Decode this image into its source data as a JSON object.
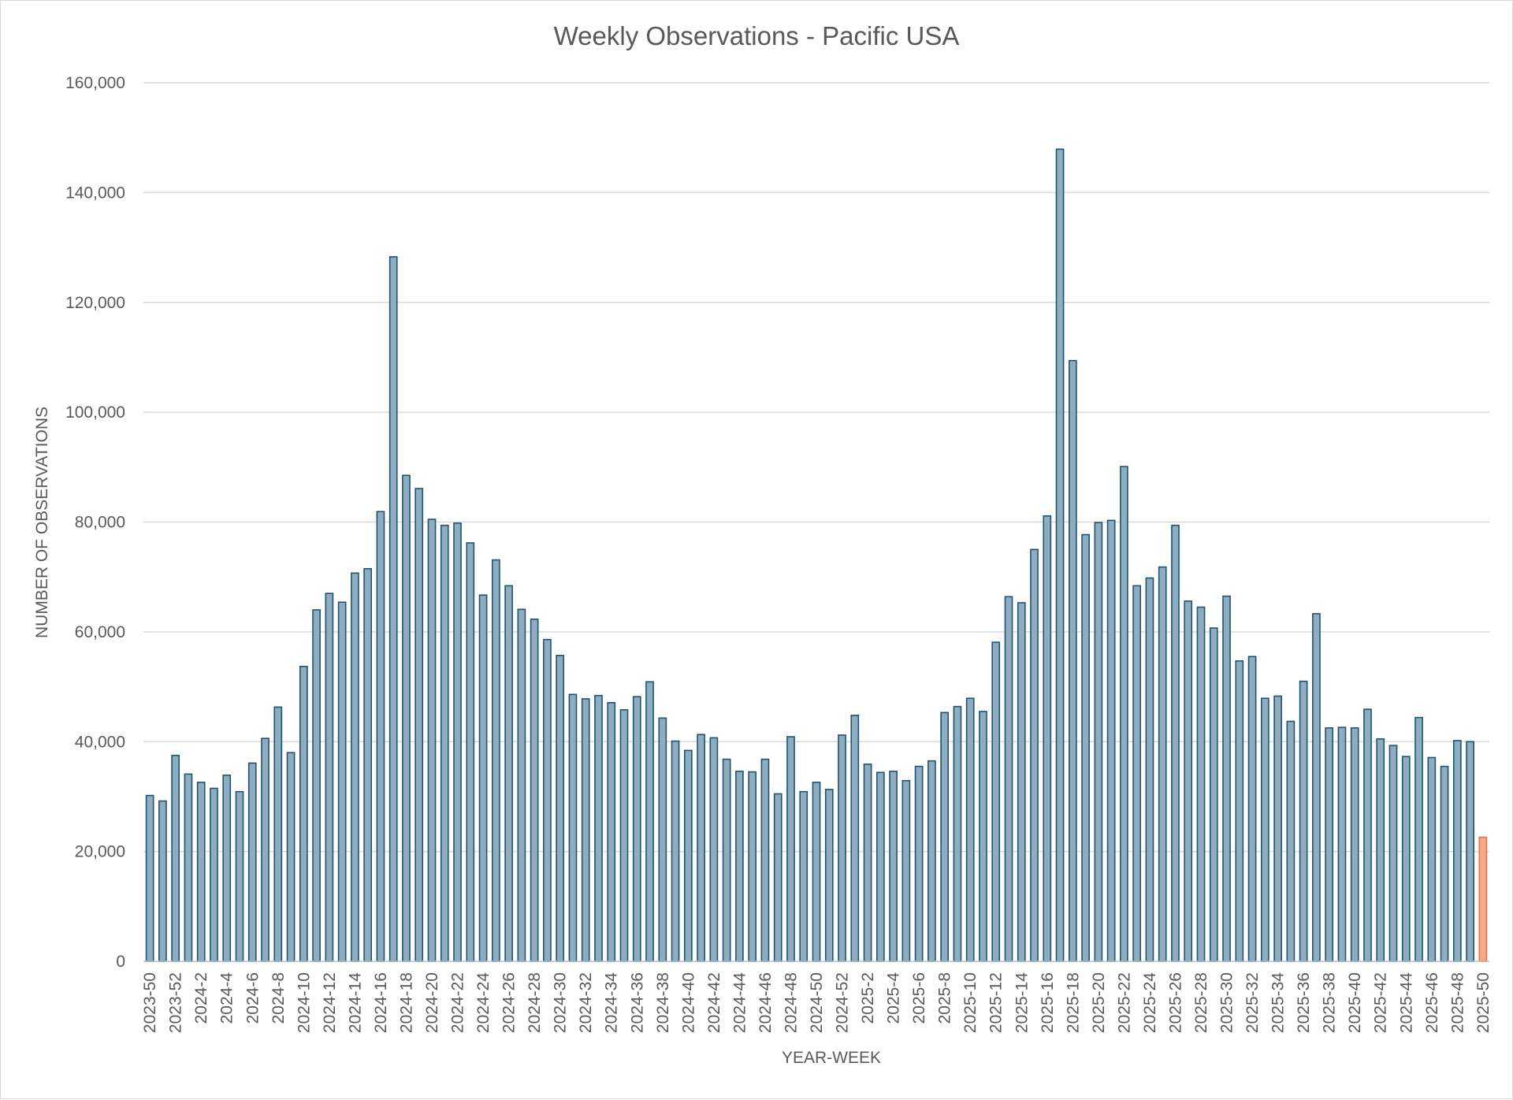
{
  "chart_data": {
    "type": "bar",
    "title": "Weekly Observations - Pacific USA",
    "xlabel": "YEAR-WEEK",
    "ylabel": "NUMBER OF OBSERVATIONS",
    "ylim": [
      0,
      160000
    ],
    "yticks": [
      0,
      20000,
      40000,
      60000,
      80000,
      100000,
      120000,
      140000,
      160000
    ],
    "ytick_labels": [
      "0",
      "20,000",
      "40,000",
      "60,000",
      "80,000",
      "100,000",
      "120,000",
      "140,000",
      "160,000"
    ],
    "grid": "horizontal",
    "legend": "none",
    "tick_label_every": 2,
    "colors": {
      "bar": "#8eadc0",
      "bar_edge": "#1f5473",
      "highlight": "#f6a98b",
      "highlight_edge": "#e8733e"
    },
    "highlight_categories": [
      "2025-50"
    ],
    "categories": [
      "2023-50",
      "2023-51",
      "2023-52",
      "2024-1",
      "2024-2",
      "2024-3",
      "2024-4",
      "2024-5",
      "2024-6",
      "2024-7",
      "2024-8",
      "2024-9",
      "2024-10",
      "2024-11",
      "2024-12",
      "2024-13",
      "2024-14",
      "2024-15",
      "2024-16",
      "2024-17",
      "2024-18",
      "2024-19",
      "2024-20",
      "2024-21",
      "2024-22",
      "2024-23",
      "2024-24",
      "2024-25",
      "2024-26",
      "2024-27",
      "2024-28",
      "2024-29",
      "2024-30",
      "2024-31",
      "2024-32",
      "2024-33",
      "2024-34",
      "2024-35",
      "2024-36",
      "2024-37",
      "2024-38",
      "2024-39",
      "2024-40",
      "2024-41",
      "2024-42",
      "2024-43",
      "2024-44",
      "2024-45",
      "2024-46",
      "2024-47",
      "2024-48",
      "2024-49",
      "2024-50",
      "2024-51",
      "2024-52",
      "2025-1",
      "2025-2",
      "2025-3",
      "2025-4",
      "2025-5",
      "2025-6",
      "2025-7",
      "2025-8",
      "2025-9",
      "2025-10",
      "2025-11",
      "2025-12",
      "2025-13",
      "2025-14",
      "2025-15",
      "2025-16",
      "2025-17",
      "2025-18",
      "2025-19",
      "2025-20",
      "2025-21",
      "2025-22",
      "2025-23",
      "2025-24",
      "2025-25",
      "2025-26",
      "2025-27",
      "2025-28",
      "2025-29",
      "2025-30",
      "2025-31",
      "2025-32",
      "2025-33",
      "2025-34",
      "2025-35",
      "2025-36",
      "2025-37",
      "2025-38",
      "2025-39",
      "2025-40",
      "2025-41",
      "2025-42",
      "2025-43",
      "2025-44",
      "2025-45",
      "2025-46",
      "2025-47",
      "2025-48",
      "2025-49",
      "2025-50"
    ],
    "values": [
      30200,
      29200,
      37500,
      34100,
      32600,
      31500,
      33900,
      30900,
      36100,
      40600,
      46300,
      38000,
      53700,
      64000,
      67000,
      65400,
      70700,
      71500,
      81900,
      128300,
      88500,
      86100,
      80500,
      79400,
      79800,
      76200,
      66700,
      73100,
      68400,
      64100,
      62300,
      58600,
      55700,
      48600,
      47800,
      48400,
      47100,
      45800,
      48200,
      50900,
      44300,
      40100,
      38400,
      41300,
      40700,
      36800,
      34600,
      34500,
      36800,
      30500,
      40900,
      30900,
      32600,
      31300,
      41200,
      44800,
      35900,
      34400,
      34600,
      32900,
      35500,
      36500,
      45300,
      46400,
      47900,
      45500,
      58100,
      66400,
      65300,
      75000,
      81100,
      147900,
      109400,
      77700,
      79900,
      80300,
      90100,
      68400,
      69800,
      71800,
      79400,
      65600,
      64500,
      60700,
      66500,
      54700,
      55500,
      47900,
      48300,
      43700,
      51000,
      63300,
      42500,
      42600,
      42500,
      45900,
      40500,
      39300,
      37300,
      44400,
      37100,
      35500,
      40200,
      40000,
      22600
    ]
  }
}
